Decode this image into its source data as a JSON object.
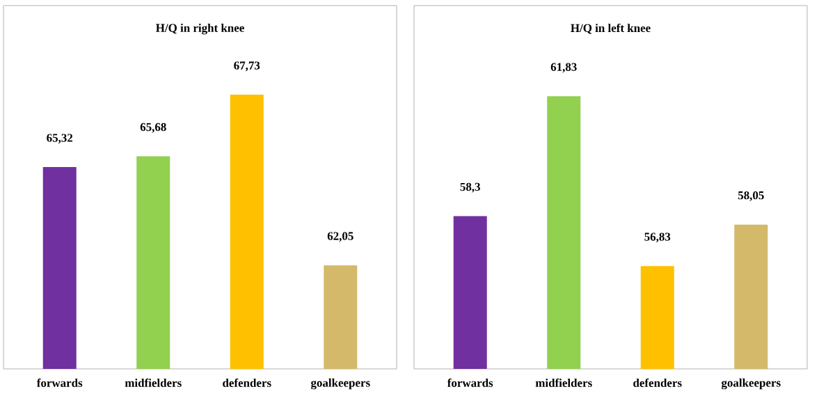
{
  "chart_data": [
    {
      "type": "bar",
      "title": "H/Q in right knee",
      "categories": [
        "forwards",
        "midfielders",
        "defenders",
        "goalkeepers"
      ],
      "values": [
        65.32,
        65.68,
        67.73,
        62.05
      ],
      "value_labels": [
        "65,32",
        "65,68",
        "67,73",
        "62,05"
      ],
      "colors": [
        "#7030a0",
        "#92d050",
        "#ffc000",
        "#d4b96a"
      ],
      "ylim": [
        58.6,
        70.7
      ],
      "tick_labels": "x"
    },
    {
      "type": "bar",
      "title": "H/Q in left knee",
      "categories": [
        "forwards",
        "midfielders",
        "defenders",
        "goalkeepers"
      ],
      "values": [
        58.3,
        61.83,
        56.83,
        58.05
      ],
      "value_labels": [
        "58,3",
        "61,83",
        "56,83",
        "58,05"
      ],
      "colors": [
        "#7030a0",
        "#92d050",
        "#ffc000",
        "#d4b96a"
      ],
      "ylim": [
        53.8,
        64.5
      ],
      "tick_labels": "x"
    }
  ]
}
